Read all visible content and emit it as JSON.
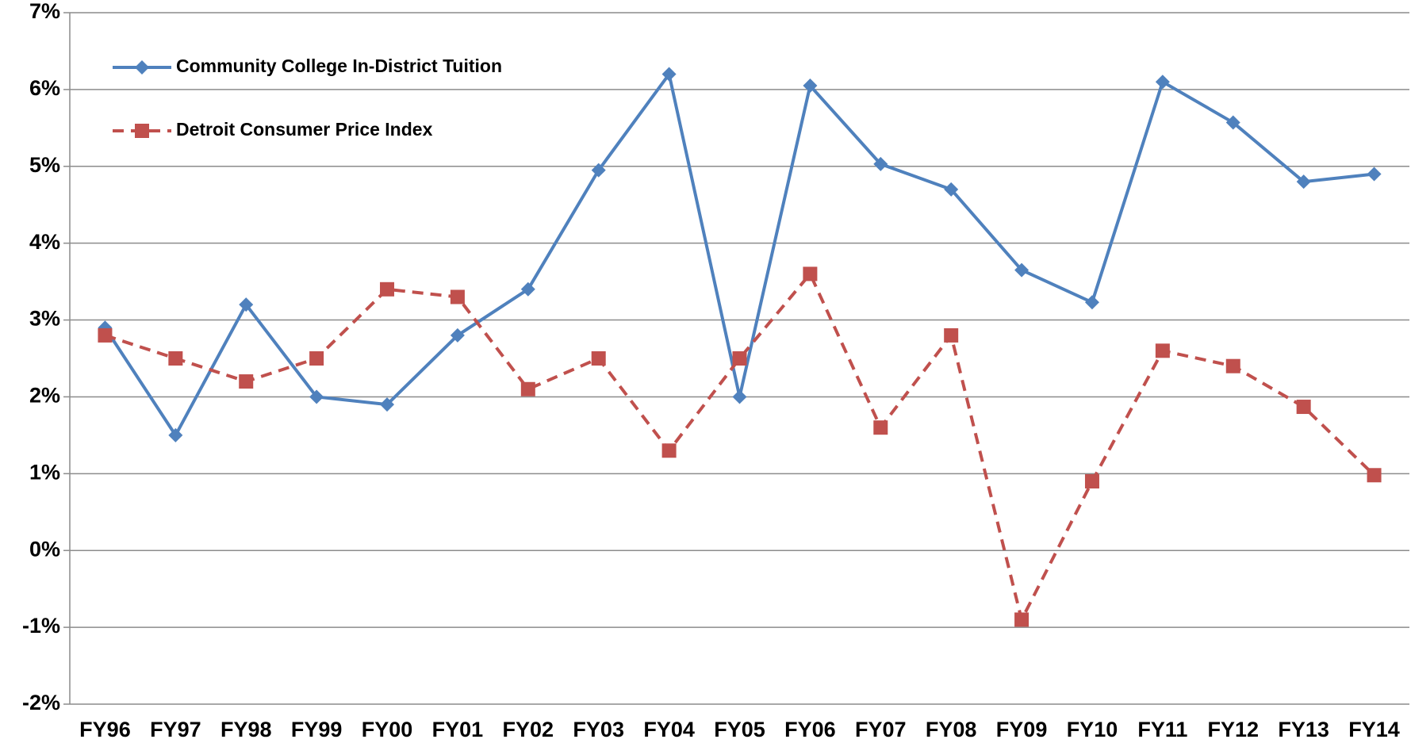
{
  "chart_data": {
    "type": "line",
    "categories": [
      "FY96",
      "FY97",
      "FY98",
      "FY99",
      "FY00",
      "FY01",
      "FY02",
      "FY03",
      "FY04",
      "FY05",
      "FY06",
      "FY07",
      "FY08",
      "FY09",
      "FY10",
      "FY11",
      "FY12",
      "FY13",
      "FY14"
    ],
    "series": [
      {
        "name": "Community College In-District Tuition",
        "color": "#4f81bd",
        "marker": "diamond",
        "dash": false,
        "values": [
          2.9,
          1.5,
          3.2,
          2.0,
          1.9,
          2.8,
          3.4,
          4.95,
          6.2,
          2.0,
          6.05,
          5.03,
          4.7,
          3.65,
          3.23,
          6.1,
          5.57,
          4.8,
          4.9
        ]
      },
      {
        "name": "Detroit Consumer Price Index",
        "color": "#c0504d",
        "marker": "square",
        "dash": true,
        "values": [
          2.8,
          2.5,
          2.2,
          2.5,
          3.4,
          3.3,
          2.1,
          2.5,
          1.3,
          2.5,
          3.6,
          1.6,
          2.8,
          -0.9,
          0.9,
          2.6,
          2.4,
          1.87,
          0.98
        ]
      }
    ],
    "ylim": [
      -2,
      7
    ],
    "yticks": [
      {
        "value": -2,
        "label": "-2%"
      },
      {
        "value": -1,
        "label": "-1%"
      },
      {
        "value": 0,
        "label": "0%"
      },
      {
        "value": 1,
        "label": "1%"
      },
      {
        "value": 2,
        "label": "2%"
      },
      {
        "value": 3,
        "label": "3%"
      },
      {
        "value": 4,
        "label": "4%"
      },
      {
        "value": 5,
        "label": "5%"
      },
      {
        "value": 6,
        "label": "6%"
      },
      {
        "value": 7,
        "label": "7%"
      }
    ],
    "grid": true,
    "legend": "upper-left"
  }
}
